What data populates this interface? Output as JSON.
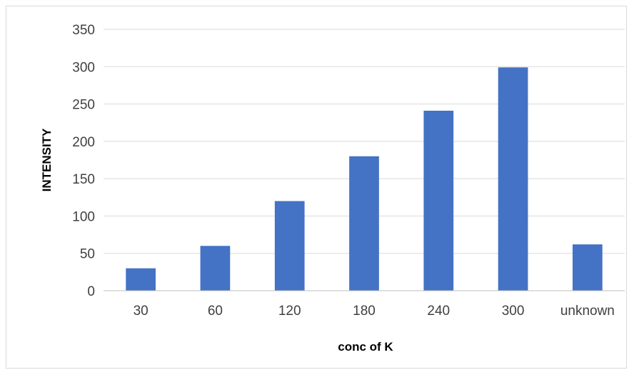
{
  "chart_data": {
    "type": "bar",
    "title": "",
    "xlabel": "conc of K",
    "ylabel": "INTENSITY",
    "categories": [
      "30",
      "60",
      "120",
      "180",
      "240",
      "300",
      "unknown"
    ],
    "series": [
      {
        "values": [
          30,
          60,
          120,
          180,
          241,
          299,
          62
        ]
      }
    ],
    "ylim": [
      0,
      350
    ],
    "yticks": [
      0,
      50,
      100,
      150,
      200,
      250,
      300,
      350
    ],
    "ytick_labels": [
      "0",
      "50",
      "100",
      "150",
      "200",
      "250",
      "300",
      "350"
    ],
    "grid": true,
    "legend": "none",
    "bar_color": "#4472C4",
    "grid_color": "#d9d9d9",
    "axis_color": "#bfbfbf"
  }
}
